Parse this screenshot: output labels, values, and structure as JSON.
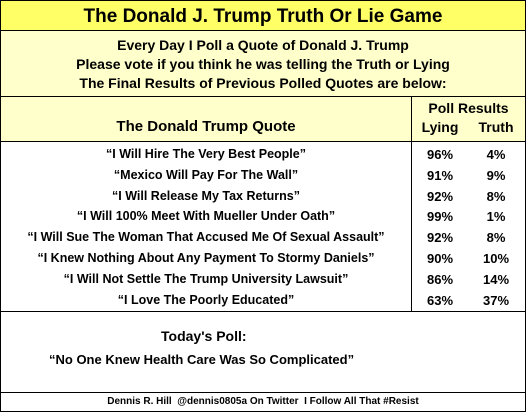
{
  "header": {
    "title": "The Donald J. Trump Truth Or Lie Game"
  },
  "intro": [
    "Every Day I Poll a Quote of Donald J. Trump",
    "Please vote if you think he was telling the Truth or Lying",
    "The Final Results of Previous Polled Quotes are below:"
  ],
  "table": {
    "quote_header": "The Donald Trump Quote",
    "results_header": "Poll Results",
    "columns": [
      "Lying",
      "Truth"
    ],
    "rows": [
      [
        "“I Will Hire The Very Best People”",
        "96%",
        "4%"
      ],
      [
        "“Mexico Will Pay For The Wall”",
        "91%",
        "9%"
      ],
      [
        "“I Will Release My Tax Returns”",
        "92%",
        "8%"
      ],
      [
        "“I Will 100% Meet With Mueller Under Oath”",
        "99%",
        "1%"
      ],
      [
        "“I Will Sue The Woman That Accused Me Of Sexual Assault”",
        "92%",
        "8%"
      ],
      [
        "“I Knew Nothing About Any Payment To Stormy Daniels”",
        "90%",
        "10%"
      ],
      [
        "“I Will Not Settle The Trump University Lawsuit”",
        "86%",
        "14%"
      ],
      [
        "“I Love The Poorly Educated”",
        "63%",
        "37%"
      ]
    ]
  },
  "today": {
    "label": "Today's Poll:",
    "quote": "“No One Knew Health Care Was So Complicated”"
  },
  "footer": "Dennis R. Hill  @dennis0805a On Twitter  I Follow All That #Resist"
}
